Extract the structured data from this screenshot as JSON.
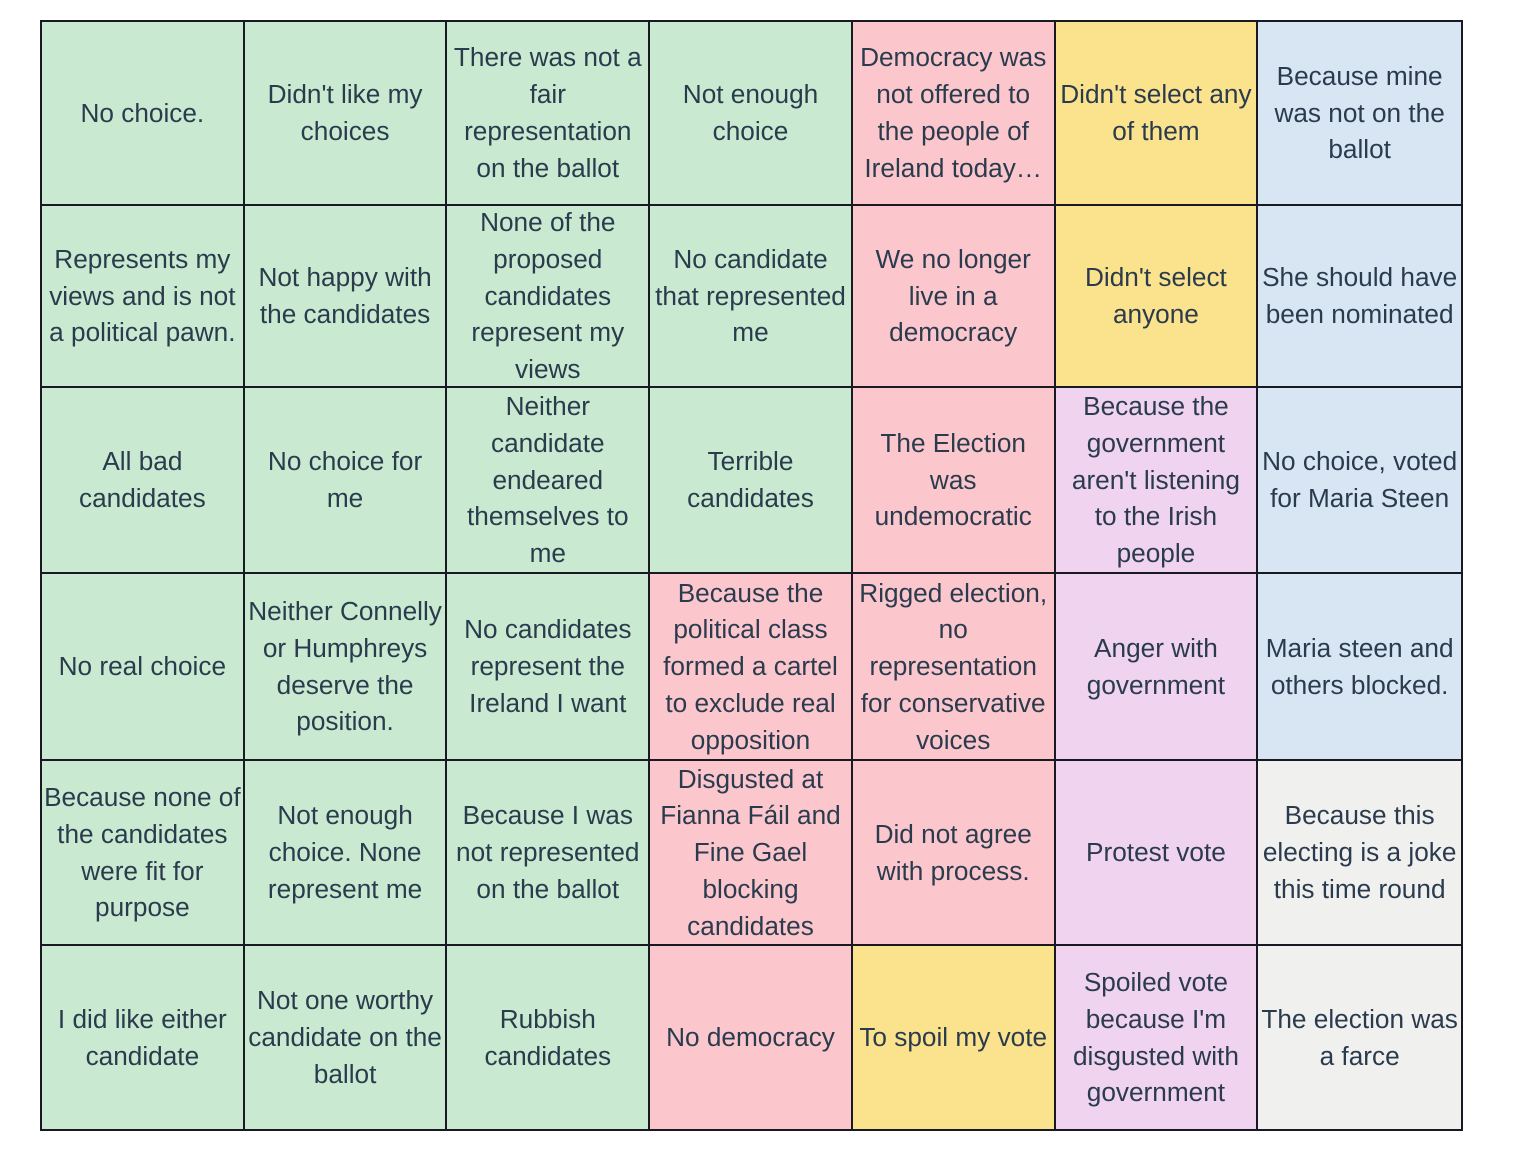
{
  "page": {
    "background": "#ffffff"
  },
  "palette": {
    "green": "#c9ead0",
    "pink": "#fbc7cd",
    "yellow": "#fbe38d",
    "purple": "#f0d3ee",
    "blue": "#d8e6f4",
    "grey": "#f0f0ef"
  },
  "table": {
    "border_color": "#191923",
    "text_color": "#2b3b4e",
    "columns": 7,
    "rows": [
      [
        {
          "text": "No choice.",
          "color": "green"
        },
        {
          "text": "Didn't like my choices",
          "color": "green"
        },
        {
          "text": "There was not a fair representation on the ballot",
          "color": "green"
        },
        {
          "text": "Not enough choice",
          "color": "green"
        },
        {
          "text": "Democracy was not offered to the people of Ireland today…",
          "color": "pink"
        },
        {
          "text": "Didn't select any of them",
          "color": "yellow"
        },
        {
          "text": "Because mine was not on the ballot",
          "color": "blue"
        }
      ],
      [
        {
          "text": "Represents my views and is not a political pawn.",
          "color": "green"
        },
        {
          "text": "Not happy with the candidates",
          "color": "green"
        },
        {
          "text": "None of the proposed candidates represent my views",
          "color": "green"
        },
        {
          "text": "No candidate that represented me",
          "color": "green"
        },
        {
          "text": "We no longer live in a democracy",
          "color": "pink"
        },
        {
          "text": "Didn't select anyone",
          "color": "yellow"
        },
        {
          "text": "She should have been nominated",
          "color": "blue"
        }
      ],
      [
        {
          "text": "All bad candidates",
          "color": "green"
        },
        {
          "text": "No choice for me",
          "color": "green"
        },
        {
          "text": "Neither candidate endeared themselves to me",
          "color": "green"
        },
        {
          "text": "Terrible candidates",
          "color": "green"
        },
        {
          "text": "The Election was undemocratic",
          "color": "pink"
        },
        {
          "text": "Because the government aren't listening to the Irish people",
          "color": "purple"
        },
        {
          "text": "No choice, voted for Maria Steen",
          "color": "blue"
        }
      ],
      [
        {
          "text": "No real choice",
          "color": "green"
        },
        {
          "text": "Neither Connelly or Humphreys deserve the position.",
          "color": "green"
        },
        {
          "text": "No candidates represent the Ireland I want",
          "color": "green"
        },
        {
          "text": "Because the political class formed a cartel to exclude real opposition",
          "color": "pink"
        },
        {
          "text": "Rigged election, no representation for conservative voices",
          "color": "pink"
        },
        {
          "text": "Anger with government",
          "color": "purple"
        },
        {
          "text": "Maria steen and others blocked.",
          "color": "blue"
        }
      ],
      [
        {
          "text": "Because none of the candidates were fit for purpose",
          "color": "green"
        },
        {
          "text": "Not enough choice. None represent me",
          "color": "green"
        },
        {
          "text": "Because I was not represented on the ballot",
          "color": "green"
        },
        {
          "text": "Disgusted at Fianna Fáil and Fine Gael blocking candidates",
          "color": "pink"
        },
        {
          "text": "Did not agree with process.",
          "color": "pink"
        },
        {
          "text": "Protest vote",
          "color": "purple"
        },
        {
          "text": "Because this electing is a joke this time round",
          "color": "grey"
        }
      ],
      [
        {
          "text": "I did like either candidate",
          "color": "green"
        },
        {
          "text": "Not one worthy candidate on the ballot",
          "color": "green"
        },
        {
          "text": "Rubbish candidates",
          "color": "green"
        },
        {
          "text": "No democracy",
          "color": "pink"
        },
        {
          "text": "To spoil my vote",
          "color": "yellow"
        },
        {
          "text": "Spoiled vote because I'm disgusted with government",
          "color": "purple"
        },
        {
          "text": "The election was a farce",
          "color": "grey"
        }
      ]
    ]
  }
}
